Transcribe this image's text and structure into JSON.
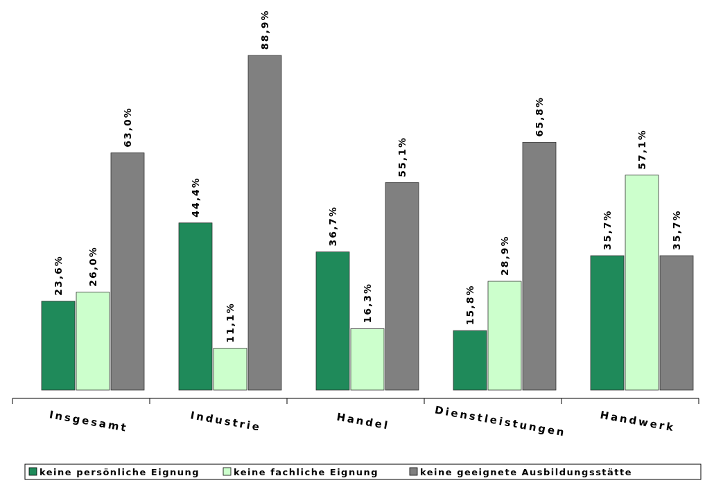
{
  "chart_data": {
    "type": "bar",
    "categories": [
      "Insgesamt",
      "Industrie",
      "Handel",
      "Dienstleistungen",
      "Handwerk"
    ],
    "series": [
      {
        "name": "keine persönliche Eignung",
        "color": "#1f8a5a",
        "values": [
          23.6,
          44.4,
          36.7,
          15.8,
          35.7
        ],
        "value_labels": [
          "23,6%",
          "44,4%",
          "36,7%",
          "15,8%",
          "35,7%"
        ]
      },
      {
        "name": "keine fachliche Eignung",
        "color": "#ccffcc",
        "values": [
          26.0,
          11.1,
          16.3,
          28.9,
          57.1
        ],
        "value_labels": [
          "26,0%",
          "11,1%",
          "16,3%",
          "28,9%",
          "57,1%"
        ]
      },
      {
        "name": "keine geeignete Ausbildungsstätte",
        "color": "#808080",
        "values": [
          63.0,
          88.9,
          55.1,
          65.8,
          35.7
        ],
        "value_labels": [
          "63,0%",
          "88,9%",
          "55,1%",
          "65,8%",
          "35,7%"
        ]
      }
    ],
    "legend": "bottom"
  }
}
